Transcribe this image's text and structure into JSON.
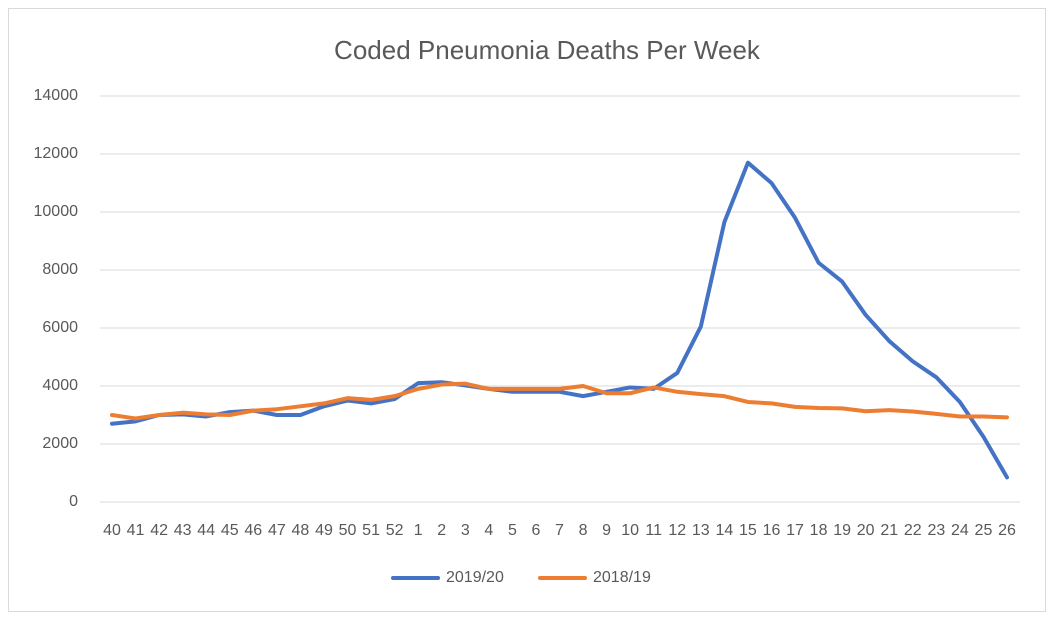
{
  "chart_data": {
    "type": "line",
    "title": "Coded Pneumonia Deaths Per Week",
    "categories": [
      "40",
      "41",
      "42",
      "43",
      "44",
      "45",
      "46",
      "47",
      "48",
      "49",
      "50",
      "51",
      "52",
      "1",
      "2",
      "3",
      "4",
      "5",
      "6",
      "7",
      "8",
      "9",
      "10",
      "11",
      "12",
      "13",
      "14",
      "15",
      "16",
      "17",
      "18",
      "19",
      "20",
      "21",
      "22",
      "23",
      "24",
      "25",
      "26"
    ],
    "series": [
      {
        "name": "2019/20",
        "color": "#4472c4",
        "values": [
          2700,
          2780,
          3000,
          3020,
          2950,
          3100,
          3150,
          3000,
          3000,
          3300,
          3500,
          3400,
          3550,
          4100,
          4130,
          4020,
          3900,
          3800,
          3800,
          3800,
          3650,
          3800,
          3950,
          3900,
          4450,
          6050,
          9650,
          11700,
          11000,
          9800,
          8250,
          7600,
          6450,
          5550,
          4850,
          4300,
          3450,
          2250,
          850
        ]
      },
      {
        "name": "2018/19",
        "color": "#ed7d31",
        "values": [
          3000,
          2880,
          3000,
          3080,
          3020,
          3000,
          3150,
          3200,
          3300,
          3400,
          3580,
          3520,
          3650,
          3900,
          4050,
          4080,
          3900,
          3900,
          3900,
          3900,
          4000,
          3750,
          3750,
          3950,
          3800,
          3720,
          3650,
          3450,
          3400,
          3280,
          3240,
          3230,
          3130,
          3170,
          3120,
          3040,
          2950,
          2950,
          2920
        ]
      }
    ],
    "ylim": [
      0,
      14000
    ],
    "yticks": [
      0,
      2000,
      4000,
      6000,
      8000,
      10000,
      12000,
      14000
    ],
    "grid": true,
    "legend": "bottom"
  }
}
